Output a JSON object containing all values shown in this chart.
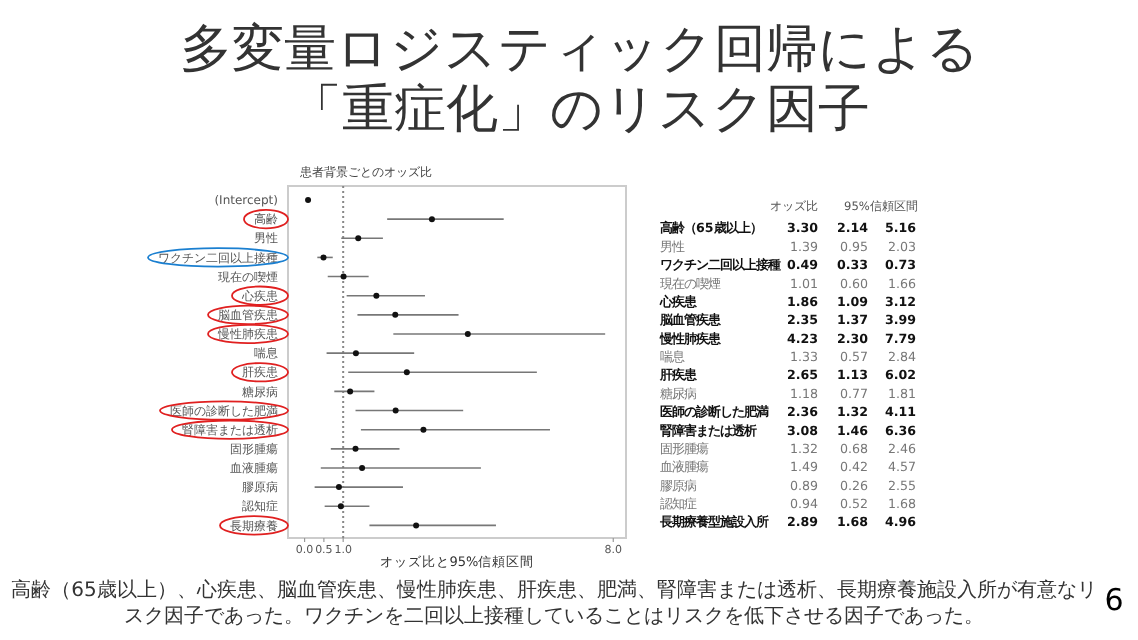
{
  "chart_data": [
    {
      "type": "scatter",
      "orientation": "horizontal",
      "title": "多変量ロジスティック回帰による「重症化」のリスク因子",
      "subtitle": "患者背景ごとのオッズ比",
      "xlabel": "オッズ比と95%信頼区間",
      "categories": [
        "(Intercept)",
        "高齢",
        "男性",
        "ワクチン二回以上接種",
        "現在の喫煙",
        "心疾患",
        "脳血管疾患",
        "慢性肺疾患",
        "喘息",
        "肝疾患",
        "糖尿病",
        "医師の診断した肥満",
        "腎障害または透析",
        "固形腫瘍",
        "血液腫瘍",
        "膠原病",
        "認知症",
        "長期療養"
      ],
      "series": [
        {
          "color": "#111111",
          "values": [
            0.09,
            3.3,
            1.39,
            0.49,
            1.01,
            1.86,
            2.35,
            4.23,
            1.33,
            2.65,
            1.18,
            2.36,
            3.08,
            1.32,
            1.49,
            0.89,
            0.94,
            2.89
          ],
          "errors": [
            null,
            [
              2.14,
              5.16
            ],
            [
              0.95,
              2.03
            ],
            [
              0.33,
              0.73
            ],
            [
              0.6,
              1.66
            ],
            [
              1.09,
              3.12
            ],
            [
              1.37,
              3.99
            ],
            [
              2.3,
              7.79
            ],
            [
              0.57,
              2.84
            ],
            [
              1.13,
              6.02
            ],
            [
              0.77,
              1.81
            ],
            [
              1.32,
              4.11
            ],
            [
              1.46,
              6.36
            ],
            [
              0.68,
              2.46
            ],
            [
              0.42,
              4.57
            ],
            [
              0.26,
              2.55
            ],
            [
              0.52,
              1.68
            ],
            [
              1.68,
              4.96
            ]
          ]
        }
      ],
      "xlim": [
        -0.43,
        8.33
      ],
      "xticks": [
        {
          "value": 0,
          "label": "0.0"
        },
        {
          "value": 0.5,
          "label": "0.5"
        },
        {
          "value": 1,
          "label": "1.0"
        },
        {
          "value": 8,
          "label": "8.0"
        }
      ],
      "ref_lines": [
        {
          "axis": "x",
          "value": 1,
          "line_style": "dotted",
          "color": "#888888"
        }
      ],
      "marker": "circle",
      "annotations": [
        "高齢（65歳以上）、心疾患、脳血管疾患、慢性肺疾患、肝疾患、肥満、腎障害または透析、長期療養施設入所が有意なリスク因子であった。ワクチンを二回以上接種していることはリスクを低下させる因子であった。",
        "6"
      ]
    },
    {
      "type": "other",
      "categories": [
        "高齢（65歳以上）",
        "男性",
        "ワクチン二回以上接種",
        "現在の喫煙",
        "心疾患",
        "脳血管疾患",
        "慢性肺疾患",
        "喘息",
        "肝疾患",
        "糖尿病",
        "医師の診断した肥満",
        "腎障害または透析",
        "固形腫瘍",
        "血液腫瘍",
        "膠原病",
        "認知症",
        "長期療養型施設入所"
      ],
      "series": [
        {
          "name": "オッズ比",
          "values": [
            3.3,
            1.39,
            0.49,
            1.01,
            1.86,
            2.35,
            4.23,
            1.33,
            2.65,
            1.18,
            2.36,
            3.08,
            1.32,
            1.49,
            0.89,
            0.94,
            2.89
          ],
          "value_labels": [
            "3.30",
            "1.39",
            "0.49",
            "1.01",
            "1.86",
            "2.35",
            "4.23",
            "1.33",
            "2.65",
            "1.18",
            "2.36",
            "3.08",
            "1.32",
            "1.49",
            "0.89",
            "0.94",
            "2.89"
          ]
        },
        {
          "name": "95%信頼区間",
          "values": [
            2.14,
            0.95,
            0.33,
            0.6,
            1.09,
            1.37,
            2.3,
            0.57,
            1.13,
            0.77,
            1.32,
            1.46,
            0.68,
            0.42,
            0.26,
            0.52,
            1.68
          ],
          "value_labels": [
            "2.14",
            "0.95",
            "0.33",
            "0.60",
            "1.09",
            "1.37",
            "2.30",
            "0.57",
            "1.13",
            "0.77",
            "1.32",
            "1.46",
            "0.68",
            "0.42",
            "0.26",
            "0.52",
            "1.68"
          ]
        },
        {
          "values": [
            5.16,
            2.03,
            0.73,
            1.66,
            3.12,
            3.99,
            7.79,
            2.84,
            6.02,
            1.81,
            4.11,
            6.36,
            2.46,
            4.57,
            2.55,
            1.68,
            4.96
          ],
          "value_labels": [
            "5.16",
            "2.03",
            "0.73",
            "1.66",
            "3.12",
            "3.99",
            "7.79",
            "2.84",
            "6.02",
            "1.81",
            "4.11",
            "6.36",
            "2.46",
            "4.57",
            "2.55",
            "1.68",
            "4.96"
          ]
        }
      ]
    }
  ]
}
